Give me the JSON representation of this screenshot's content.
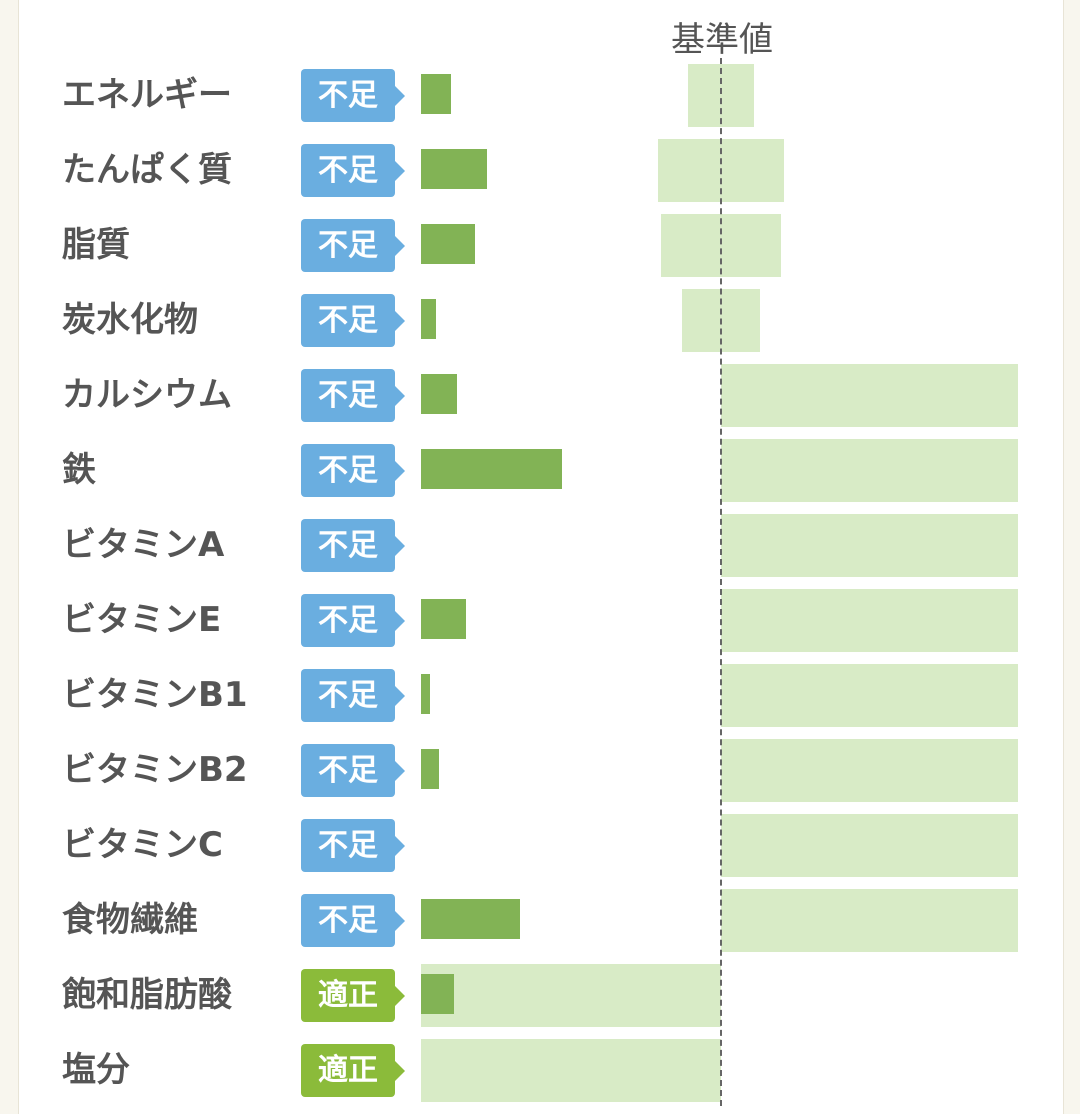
{
  "reference_label": "基準値",
  "chart_data": {
    "type": "bar",
    "orientation": "horizontal",
    "reference_label": "基準値",
    "rows": [
      {
        "name": "エネルギー",
        "status": "不足",
        "intake_percent": 10,
        "range_percent": [
          -11,
          11
        ]
      },
      {
        "name": "たんぱく質",
        "status": "不足",
        "intake_percent": 22,
        "range_percent": [
          -21,
          21
        ]
      },
      {
        "name": "脂質",
        "status": "不足",
        "intake_percent": 18,
        "range_percent": [
          -20,
          20
        ]
      },
      {
        "name": "炭水化物",
        "status": "不足",
        "intake_percent": 5,
        "range_percent": [
          -13,
          13
        ]
      },
      {
        "name": "カルシウム",
        "status": "不足",
        "intake_percent": 12,
        "range_percent": [
          0,
          99
        ]
      },
      {
        "name": "鉄",
        "status": "不足",
        "intake_percent": 47,
        "range_percent": [
          0,
          99
        ]
      },
      {
        "name": "ビタミンA",
        "status": "不足",
        "intake_percent": 0,
        "range_percent": [
          0,
          99
        ]
      },
      {
        "name": "ビタミンE",
        "status": "不足",
        "intake_percent": 15,
        "range_percent": [
          0,
          99
        ]
      },
      {
        "name": "ビタミンB1",
        "status": "不足",
        "intake_percent": 3,
        "range_percent": [
          0,
          99
        ]
      },
      {
        "name": "ビタミンB2",
        "status": "不足",
        "intake_percent": 6,
        "range_percent": [
          0,
          99
        ]
      },
      {
        "name": "ビタミンC",
        "status": "不足",
        "intake_percent": 0,
        "range_percent": [
          0,
          99
        ]
      },
      {
        "name": "食物繊維",
        "status": "不足",
        "intake_percent": 33,
        "range_percent": [
          0,
          99
        ]
      },
      {
        "name": "飽和脂肪酸",
        "status": "適正",
        "intake_percent": 11,
        "range_percent": [
          -100,
          0
        ]
      },
      {
        "name": "塩分",
        "status": "適正",
        "intake_percent": 0,
        "range_percent": [
          -100,
          0
        ]
      }
    ]
  },
  "colors": {
    "badge_low": "#6aaee0",
    "badge_ok": "#8bbb3a",
    "bar": "#82b355",
    "range": "#d8ebc6"
  }
}
